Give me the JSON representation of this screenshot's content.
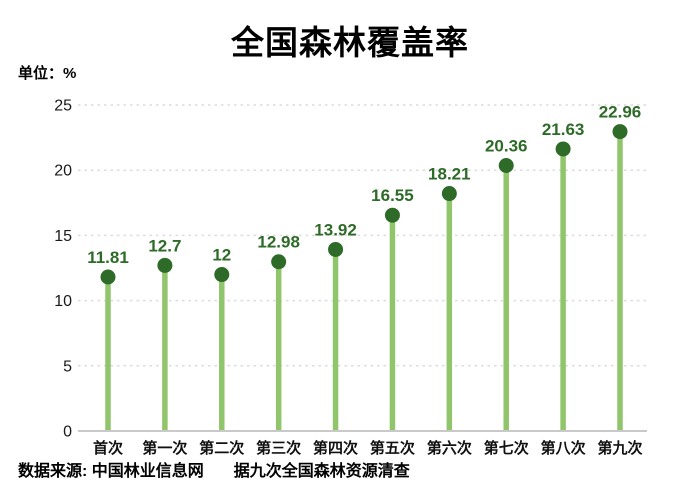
{
  "header": {
    "title": "全国森林覆盖率",
    "unit_label": "单位：%"
  },
  "footer": {
    "source": "数据来源: 中国林业信息网",
    "note": "据九次全国森林资源清查"
  },
  "chart_data": {
    "type": "bar",
    "variant": "lollipop",
    "title": "全国森林覆盖率",
    "xlabel": "",
    "ylabel": "单位：%",
    "categories": [
      "首次",
      "第一次",
      "第二次",
      "第三次",
      "第四次",
      "第五次",
      "第六次",
      "第七次",
      "第八次",
      "第九次"
    ],
    "values": [
      11.81,
      12.7,
      12,
      12.98,
      13.92,
      16.55,
      18.21,
      20.36,
      21.63,
      22.96
    ],
    "value_labels": [
      "11.81",
      "12.7",
      "12",
      "12.98",
      "13.92",
      "16.55",
      "18.21",
      "20.36",
      "21.63",
      "22.96"
    ],
    "ylim": [
      0,
      25
    ],
    "yticks": [
      0,
      5,
      10,
      15,
      20,
      25
    ],
    "grid": "horizontal-dashed",
    "legend": "none",
    "colors": {
      "stem": "#90c56b",
      "dot": "#2e6b28",
      "value_label": "#2e6b28",
      "gridline": "#dcdcdc",
      "axis_line": "#c9c9c9",
      "tick_text": "#1a1a1a"
    }
  }
}
